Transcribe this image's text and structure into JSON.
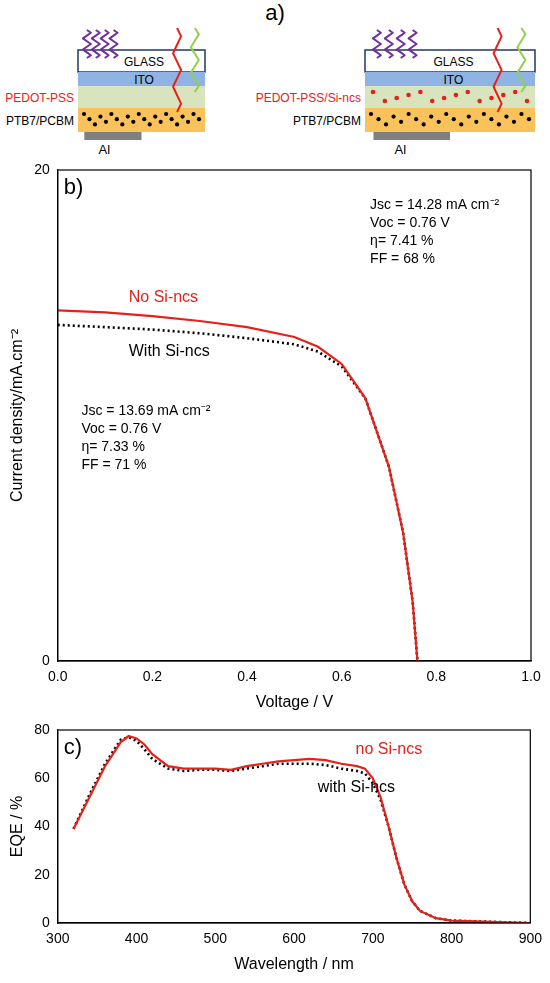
{
  "diagram": {
    "label": "a)",
    "devices": [
      {
        "layers": [
          "GLASS",
          "ITO",
          "PEDOT-PSS",
          "PTB7/PCBM",
          "Al"
        ]
      },
      {
        "layers": [
          "GLASS",
          "ITO",
          "PEDOT-PSS/Si-ncs",
          "PTB7/PCBM",
          "Al"
        ]
      }
    ]
  },
  "chart_data": [
    {
      "type": "line",
      "panel": "b)",
      "x_label": "Voltage / V",
      "y_label": "Current density/mA.cm⁻²",
      "x": [
        0,
        0.1,
        0.2,
        0.3,
        0.4,
        0.5,
        0.55,
        0.6,
        0.65,
        0.7,
        0.73,
        0.75,
        0.76
      ],
      "series": [
        {
          "name": "No Si-ncs",
          "color": "#e8201a",
          "line_style": "solid",
          "values": [
            14.28,
            14.2,
            14.05,
            13.85,
            13.6,
            13.2,
            12.8,
            12.1,
            10.7,
            7.9,
            5.2,
            2.4,
            0
          ]
        },
        {
          "name": "With Si-ncs",
          "color": "#000000",
          "line_style": "dotted",
          "values": [
            13.69,
            13.6,
            13.5,
            13.35,
            13.15,
            12.9,
            12.6,
            12.0,
            10.7,
            7.9,
            5.2,
            2.4,
            0
          ]
        }
      ],
      "annotations": [
        [
          "Jsc = 14.28 mA cm⁻²",
          "Voc = 0.76 V",
          "η= 7.41 %",
          "FF = 68 %"
        ],
        [
          "Jsc = 13.69 mA cm⁻²",
          "Voc = 0.76 V",
          "η= 7.33 %",
          "FF = 71 %"
        ]
      ],
      "xlim": [
        0,
        1
      ],
      "xticks": [
        {
          "value": 0,
          "label": "0.0"
        },
        {
          "value": 0.2,
          "label": "0.2"
        },
        {
          "value": 0.4,
          "label": "0.4"
        },
        {
          "value": 0.6,
          "label": "0.6"
        },
        {
          "value": 0.8,
          "label": "0.8"
        },
        {
          "value": 1,
          "label": "1.0"
        }
      ],
      "ylim": [
        0,
        20
      ],
      "yticks": [
        0,
        20
      ],
      "grid": false
    },
    {
      "type": "line",
      "panel": "c)",
      "x_label": "Wavelength / nm",
      "y_label": "EQE / %",
      "x": [
        320,
        340,
        360,
        380,
        390,
        400,
        410,
        420,
        440,
        460,
        480,
        500,
        520,
        540,
        560,
        580,
        600,
        620,
        640,
        660,
        680,
        690,
        700,
        710,
        720,
        730,
        740,
        750,
        760,
        780,
        800,
        850,
        900
      ],
      "series": [
        {
          "name": "no Si-ncs",
          "color": "#e8201a",
          "line_style": "solid",
          "values": [
            39,
            52,
            65,
            75,
            77.5,
            76.5,
            74,
            70,
            65,
            64,
            64,
            64,
            63.5,
            65,
            66,
            67,
            67.5,
            68,
            67.5,
            66,
            65,
            64,
            60,
            52,
            40,
            27,
            16,
            9,
            5,
            2,
            1,
            0.5,
            0
          ]
        },
        {
          "name": "with Si-ncs",
          "color": "#000000",
          "line_style": "dotted",
          "values": [
            39,
            53,
            66,
            76,
            77,
            75.5,
            72,
            68,
            64,
            63,
            63.5,
            63.5,
            63,
            64,
            65,
            66,
            66,
            66,
            65.5,
            64,
            63,
            62,
            58,
            51,
            40,
            27,
            16,
            9,
            5,
            2,
            1,
            0.5,
            0
          ]
        }
      ],
      "xlim": [
        300,
        900
      ],
      "xticks": [
        300,
        400,
        500,
        600,
        700,
        800,
        900
      ],
      "ylim": [
        0,
        80
      ],
      "yticks": [
        0,
        20,
        40,
        60,
        80
      ],
      "grid": false
    }
  ]
}
